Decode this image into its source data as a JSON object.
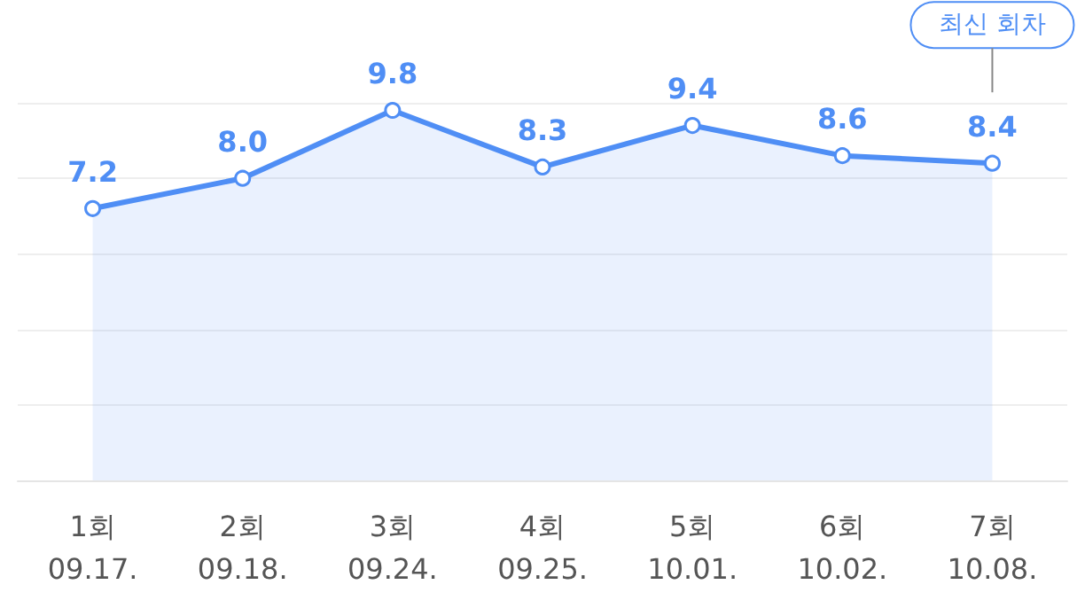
{
  "chart_data": {
    "type": "area",
    "categories": [
      "1회\n09.17.",
      "2회\n09.18.",
      "3회\n09.24.",
      "4회\n09.25.",
      "5회\n10.01.",
      "6회\n10.02.",
      "7회\n10.08."
    ],
    "series": [
      {
        "color": "#4f8ef5",
        "values": [
          7.2,
          8.0,
          9.8,
          8.3,
          9.4,
          8.6,
          8.4
        ],
        "value_labels": [
          "7.2",
          "8.0",
          "9.8",
          "8.3",
          "9.4",
          "8.6",
          "8.4"
        ]
      }
    ],
    "grid": "y",
    "tick_labels": "x",
    "marker": "circle",
    "line_style": "solid",
    "annotations": [
      "최신 회차"
    ]
  }
}
